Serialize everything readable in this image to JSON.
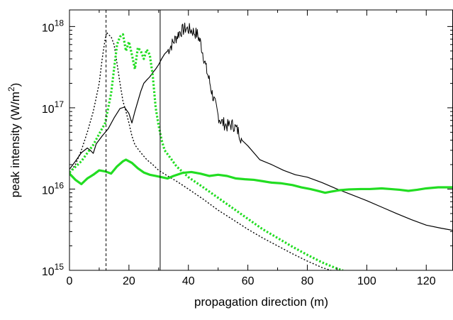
{
  "chart_data": {
    "type": "line",
    "xlabel": "propagation direction (m)",
    "ylabel_main": "peak intensity (W/m",
    "ylabel_sup": "2",
    "ylabel_close": ")",
    "xlim": [
      0,
      129
    ],
    "ylim": [
      1000000000000000.0,
      1.6e+18
    ],
    "yscale": "log",
    "grid": false,
    "xticks": [
      0,
      20,
      40,
      60,
      80,
      100,
      120
    ],
    "xtick_labels": [
      "0",
      "20",
      "40",
      "60",
      "80",
      "100",
      "120"
    ],
    "yticks": [
      {
        "value": 1000000000000000.0,
        "base": "10",
        "exp": "15"
      },
      {
        "value": 1e+16,
        "base": "10",
        "exp": "16"
      },
      {
        "value": 1e+17,
        "base": "10",
        "exp": "17"
      },
      {
        "value": 1e+18,
        "base": "10",
        "exp": "18"
      }
    ],
    "vlines": [
      {
        "x": 12.3,
        "style": "dashed",
        "color": "#000000"
      },
      {
        "x": 30.5,
        "style": "solid",
        "color": "#000000"
      }
    ],
    "series": [
      {
        "style": "solid",
        "color": "#000000",
        "width": 1.2,
        "noise": 0,
        "points": [
          [
            0,
            1.75e+16
          ],
          [
            2,
            2.2e+16
          ],
          [
            4,
            2.8e+16
          ],
          [
            6,
            3.2e+16
          ],
          [
            7,
            3e+16
          ],
          [
            8,
            2.75e+16
          ],
          [
            9,
            3.6e+16
          ],
          [
            11,
            4.5e+16
          ],
          [
            13,
            5.5e+16
          ],
          [
            15,
            7.5e+16
          ],
          [
            17,
            9.8e+16
          ],
          [
            18.5,
            1.02e+17
          ],
          [
            20,
            8.5e+16
          ],
          [
            21,
            6.5e+16
          ],
          [
            22,
            9e+16
          ],
          [
            23,
            1.2e+17
          ],
          [
            24,
            1.6e+17
          ],
          [
            25,
            2e+17
          ],
          [
            26,
            2.2e+17
          ],
          [
            27,
            2.4e+17
          ],
          [
            28,
            2.7e+17
          ],
          [
            29,
            3e+17
          ],
          [
            30,
            3.4e+17
          ],
          [
            31,
            4e+17
          ],
          [
            32,
            4.6e+17
          ],
          [
            33,
            5e+17
          ]
        ]
      },
      {
        "style": "solid",
        "color": "#000000",
        "width": 1.0,
        "noise": 0.35,
        "points": [
          [
            33,
            5e+17
          ],
          [
            35,
            6.5e+17
          ],
          [
            37,
            8.5e+17
          ],
          [
            39,
            9.5e+17
          ],
          [
            41,
            9e+17
          ],
          [
            43,
            8e+17
          ],
          [
            44,
            6.5e+17
          ],
          [
            45,
            4.5e+17
          ],
          [
            46,
            3e+17
          ],
          [
            47,
            2.2e+17
          ],
          [
            48,
            1.5e+17
          ],
          [
            49,
            1.1e+17
          ],
          [
            50,
            8e+16
          ],
          [
            51,
            6.8e+16
          ],
          [
            53,
            6e+16
          ],
          [
            55,
            6.2e+16
          ],
          [
            57,
            5e+16
          ],
          [
            58,
            4e+16
          ]
        ]
      },
      {
        "style": "solid",
        "color": "#000000",
        "width": 1.2,
        "noise": 0,
        "points": [
          [
            58,
            4e+16
          ],
          [
            60,
            3.4e+16
          ],
          [
            62,
            2.8e+16
          ],
          [
            64,
            2.3e+16
          ],
          [
            68,
            2e+16
          ],
          [
            72,
            1.7e+16
          ],
          [
            76,
            1.5e+16
          ],
          [
            80,
            1.4e+16
          ],
          [
            85,
            1.2e+16
          ],
          [
            90,
            1e+16
          ],
          [
            95,
            8500000000000000.0
          ],
          [
            100,
            7200000000000000.0
          ],
          [
            105,
            6000000000000000.0
          ],
          [
            110,
            5000000000000000.0
          ],
          [
            115,
            4200000000000000.0
          ],
          [
            120,
            3600000000000000.0
          ],
          [
            125,
            3300000000000000.0
          ],
          [
            129,
            3100000000000000.0
          ]
        ]
      },
      {
        "style": "dotted",
        "color": "#000000",
        "width": 1.4,
        "noise": 0,
        "points": [
          [
            0,
            1.6e+16
          ],
          [
            2,
            2e+16
          ],
          [
            4,
            3e+16
          ],
          [
            6,
            5e+16
          ],
          [
            8,
            9e+16
          ],
          [
            10,
            2e+17
          ],
          [
            11,
            4e+17
          ],
          [
            12,
            7e+17
          ],
          [
            12.5,
            8.5e+17
          ],
          [
            13,
            8e+17
          ],
          [
            14,
            7.5e+17
          ],
          [
            15,
            6e+17
          ],
          [
            16,
            3.5e+17
          ],
          [
            17,
            2e+17
          ],
          [
            18,
            1.2e+17
          ],
          [
            19,
            9e+16
          ],
          [
            20,
            6.5e+16
          ],
          [
            21,
            4.5e+16
          ],
          [
            22,
            3.5e+16
          ],
          [
            24,
            2.8e+16
          ],
          [
            26,
            2.3e+16
          ],
          [
            28,
            2e+16
          ],
          [
            30,
            1.7e+16
          ],
          [
            33,
            1.45e+16
          ],
          [
            36,
            1.25e+16
          ],
          [
            40,
            1e+16
          ],
          [
            45,
            7500000000000000.0
          ],
          [
            50,
            5500000000000000.0
          ],
          [
            55,
            4200000000000000.0
          ],
          [
            60,
            3200000000000000.0
          ],
          [
            65,
            2500000000000000.0
          ],
          [
            70,
            2000000000000000.0
          ],
          [
            75,
            1600000000000000.0
          ],
          [
            80,
            1300000000000000.0
          ],
          [
            85,
            1080000000000000.0
          ],
          [
            88,
            1000000000000000.0
          ]
        ]
      },
      {
        "style": "dotted",
        "color": "#22dd22",
        "width": 3.2,
        "noise": 0,
        "points": [
          [
            0,
            1.6e+16
          ],
          [
            4,
            2.2e+16
          ],
          [
            8,
            3.5e+16
          ],
          [
            12,
            6.5e+16
          ],
          [
            14,
            1.5e+17
          ],
          [
            15,
            3e+17
          ],
          [
            16,
            6e+17
          ],
          [
            17,
            7.5e+17
          ],
          [
            18,
            8e+17
          ],
          [
            19,
            5e+17
          ],
          [
            20,
            6.5e+17
          ],
          [
            21,
            4.5e+17
          ],
          [
            22,
            3e+17
          ],
          [
            23,
            5.5e+17
          ],
          [
            24,
            5e+17
          ],
          [
            25,
            4e+17
          ],
          [
            26,
            5.2e+17
          ],
          [
            27,
            4.5e+17
          ],
          [
            28,
            2.5e+17
          ],
          [
            29,
            1e+17
          ],
          [
            30,
            6e+16
          ],
          [
            31,
            4e+16
          ],
          [
            32,
            3e+16
          ],
          [
            34,
            2.4e+16
          ],
          [
            36,
            1.9e+16
          ],
          [
            40,
            1.4e+16
          ],
          [
            45,
            1.05e+16
          ],
          [
            50,
            7800000000000000.0
          ],
          [
            55,
            5800000000000000.0
          ],
          [
            60,
            4300000000000000.0
          ],
          [
            65,
            3200000000000000.0
          ],
          [
            70,
            2500000000000000.0
          ],
          [
            75,
            1950000000000000.0
          ],
          [
            80,
            1550000000000000.0
          ],
          [
            85,
            1250000000000000.0
          ],
          [
            90,
            1050000000000000.0
          ],
          [
            92,
            1000000000000000.0
          ]
        ]
      },
      {
        "style": "solid",
        "color": "#22dd22",
        "width": 3.2,
        "noise": 0,
        "points": [
          [
            0,
            1.55e+16
          ],
          [
            2,
            1.3e+16
          ],
          [
            4,
            1.15e+16
          ],
          [
            6,
            1.35e+16
          ],
          [
            8,
            1.5e+16
          ],
          [
            10,
            1.7e+16
          ],
          [
            12,
            1.65e+16
          ],
          [
            14,
            1.55e+16
          ],
          [
            16,
            1.9e+16
          ],
          [
            18,
            2.2e+16
          ],
          [
            19,
            2.3e+16
          ],
          [
            21,
            2.1e+16
          ],
          [
            23,
            1.8e+16
          ],
          [
            25,
            1.6e+16
          ],
          [
            27,
            1.5e+16
          ],
          [
            29,
            1.45e+16
          ],
          [
            31,
            1.4e+16
          ],
          [
            33,
            1.35e+16
          ],
          [
            35,
            1.45e+16
          ],
          [
            38,
            1.58e+16
          ],
          [
            41,
            1.62e+16
          ],
          [
            44,
            1.55e+16
          ],
          [
            47,
            1.45e+16
          ],
          [
            50,
            1.5e+16
          ],
          [
            53,
            1.45e+16
          ],
          [
            56,
            1.35e+16
          ],
          [
            59,
            1.32e+16
          ],
          [
            62,
            1.3e+16
          ],
          [
            65,
            1.25e+16
          ],
          [
            68,
            1.2e+16
          ],
          [
            71,
            1.18e+16
          ],
          [
            75,
            1.12e+16
          ],
          [
            78,
            1.05e+16
          ],
          [
            81,
            1e+16
          ],
          [
            83,
            9600000000000000.0
          ],
          [
            86,
            9000000000000000.0
          ],
          [
            88,
            9300000000000000.0
          ],
          [
            91,
            9700000000000000.0
          ],
          [
            94,
            9900000000000000.0
          ],
          [
            98,
            1e+16
          ],
          [
            101,
            1e+16
          ],
          [
            105,
            1.02e+16
          ],
          [
            108,
            1e+16
          ],
          [
            111,
            9800000000000000.0
          ],
          [
            114,
            9500000000000000.0
          ],
          [
            117,
            9800000000000000.0
          ],
          [
            120,
            1.02e+16
          ],
          [
            124,
            1.05e+16
          ],
          [
            129,
            1.05e+16
          ]
        ]
      }
    ]
  }
}
